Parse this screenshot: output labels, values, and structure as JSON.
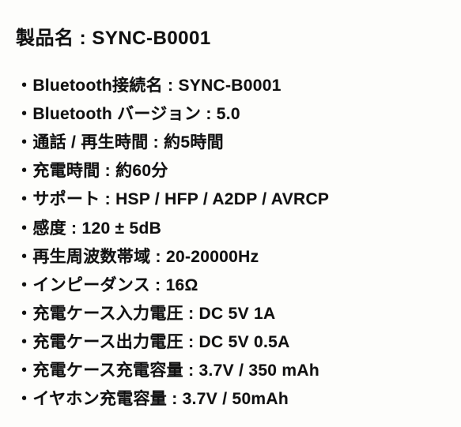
{
  "title": "製品名 : SYNC-B0001",
  "specs": [
    {
      "label": "Bluetooth接続名",
      "value": "SYNC-B0001"
    },
    {
      "label": "Bluetooth バージョン",
      "value": "5.0"
    },
    {
      "label": "通話 / 再生時間",
      "value": "約5時間"
    },
    {
      "label": "充電時間",
      "value": "約60分"
    },
    {
      "label": "サポート",
      "value": "HSP / HFP / A2DP / AVRCP"
    },
    {
      "label": "感度",
      "value": "120 ± 5dB"
    },
    {
      "label": "再生周波数帯域",
      "value": "20-20000Hz"
    },
    {
      "label": "インピーダンス",
      "value": "16Ω"
    },
    {
      "label": "充電ケース入力電圧",
      "value": "DC 5V 1A"
    },
    {
      "label": "充電ケース出力電圧",
      "value": "DC 5V 0.5A"
    },
    {
      "label": "充電ケース充電容量",
      "value": "3.7V / 350 mAh"
    },
    {
      "label": "イヤホン充電容量",
      "value": "3.7V / 50mAh"
    }
  ],
  "style": {
    "background_color": "#fdfdfb",
    "text_color": "#111111",
    "title_fontsize": 24,
    "item_fontsize": 21,
    "font_weight": 900,
    "line_height": 1.72,
    "bullet_char": "・",
    "separator": " : "
  }
}
